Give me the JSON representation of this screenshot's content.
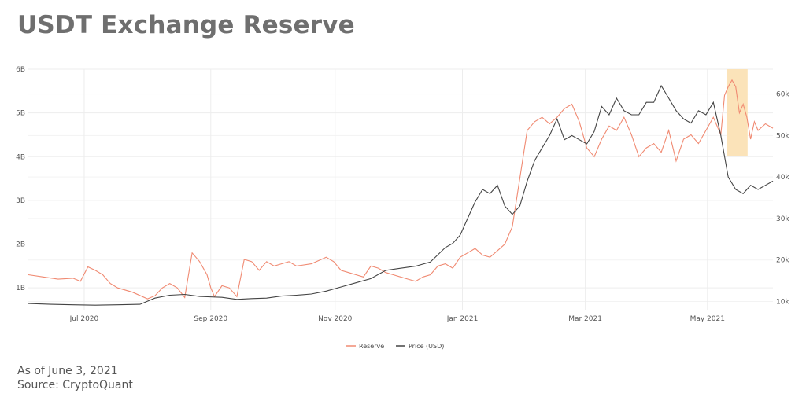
{
  "title": "USDT Exchange Reserve",
  "footer": {
    "line1": "As of June 3, 2021",
    "line2": "Source: CryptoQuant"
  },
  "chart_data": {
    "type": "line",
    "x_tick_labels": [
      "Jul 2020",
      "Sep 2020",
      "Nov 2020",
      "Jan 2021",
      "Mar 2021",
      "May 2021"
    ],
    "y_left_ticks": [
      "6B",
      "5B",
      "4B",
      "3B",
      "2B",
      "1B"
    ],
    "y_right_ticks": [
      "60k",
      "50k",
      "40k",
      "30k",
      "20k",
      "10k"
    ],
    "ylim_left": [
      0.5,
      6
    ],
    "ylim_right": [
      8000,
      66000
    ],
    "grid": true,
    "legend_position": "bottom-center",
    "highlight": {
      "from": 0.938,
      "to": 0.966,
      "color": "#fbe3b9",
      "note": "highlighted recent drop in reserve"
    },
    "series": [
      {
        "name": "Reserve",
        "axis": "left",
        "color": "#f08a72",
        "x": [
          0.0,
          0.02,
          0.04,
          0.06,
          0.07,
          0.08,
          0.09,
          0.1,
          0.11,
          0.12,
          0.14,
          0.16,
          0.17,
          0.18,
          0.19,
          0.2,
          0.21,
          0.22,
          0.23,
          0.24,
          0.245,
          0.25,
          0.26,
          0.27,
          0.28,
          0.29,
          0.3,
          0.31,
          0.32,
          0.33,
          0.34,
          0.35,
          0.36,
          0.38,
          0.4,
          0.41,
          0.42,
          0.43,
          0.44,
          0.45,
          0.46,
          0.47,
          0.48,
          0.49,
          0.5,
          0.51,
          0.52,
          0.53,
          0.54,
          0.55,
          0.56,
          0.57,
          0.58,
          0.59,
          0.6,
          0.61,
          0.62,
          0.63,
          0.64,
          0.65,
          0.66,
          0.67,
          0.675,
          0.68,
          0.69,
          0.7,
          0.71,
          0.72,
          0.73,
          0.74,
          0.75,
          0.76,
          0.77,
          0.78,
          0.79,
          0.8,
          0.81,
          0.82,
          0.83,
          0.84,
          0.85,
          0.86,
          0.87,
          0.88,
          0.89,
          0.9,
          0.91,
          0.92,
          0.93,
          0.935,
          0.94,
          0.945,
          0.95,
          0.955,
          0.96,
          0.965,
          0.97,
          0.975,
          0.98,
          0.99,
          1.0
        ],
        "values": [
          1.3,
          1.25,
          1.2,
          1.22,
          1.15,
          1.48,
          1.4,
          1.3,
          1.1,
          1.0,
          0.9,
          0.75,
          0.82,
          1.0,
          1.1,
          1.0,
          0.78,
          1.8,
          1.6,
          1.3,
          1.0,
          0.8,
          1.05,
          1.0,
          0.8,
          1.65,
          1.6,
          1.4,
          1.6,
          1.5,
          1.55,
          1.6,
          1.5,
          1.55,
          1.7,
          1.6,
          1.4,
          1.35,
          1.3,
          1.25,
          1.5,
          1.45,
          1.35,
          1.3,
          1.25,
          1.2,
          1.15,
          1.25,
          1.3,
          1.5,
          1.55,
          1.45,
          1.7,
          1.8,
          1.9,
          1.75,
          1.7,
          1.85,
          2.0,
          2.4,
          3.5,
          4.6,
          4.7,
          4.8,
          4.9,
          4.75,
          4.9,
          5.1,
          5.2,
          4.8,
          4.2,
          4.0,
          4.4,
          4.7,
          4.6,
          4.9,
          4.5,
          4.0,
          4.2,
          4.3,
          4.1,
          4.6,
          3.9,
          4.4,
          4.5,
          4.3,
          4.6,
          4.9,
          4.5,
          5.4,
          5.6,
          5.75,
          5.6,
          5.0,
          5.2,
          4.9,
          4.4,
          4.8,
          4.6,
          4.75,
          4.65
        ]
      },
      {
        "name": "Price (USD)",
        "axis": "right",
        "color": "#444444",
        "x": [
          0.0,
          0.03,
          0.06,
          0.09,
          0.12,
          0.15,
          0.17,
          0.19,
          0.21,
          0.23,
          0.26,
          0.28,
          0.3,
          0.32,
          0.34,
          0.36,
          0.38,
          0.4,
          0.42,
          0.44,
          0.46,
          0.48,
          0.5,
          0.52,
          0.54,
          0.56,
          0.57,
          0.58,
          0.59,
          0.6,
          0.61,
          0.62,
          0.63,
          0.64,
          0.65,
          0.66,
          0.67,
          0.68,
          0.69,
          0.7,
          0.71,
          0.72,
          0.73,
          0.74,
          0.75,
          0.76,
          0.77,
          0.78,
          0.79,
          0.8,
          0.81,
          0.82,
          0.83,
          0.84,
          0.85,
          0.86,
          0.87,
          0.88,
          0.89,
          0.9,
          0.91,
          0.92,
          0.93,
          0.94,
          0.95,
          0.96,
          0.97,
          0.98,
          0.99,
          1.0
        ],
        "values": [
          9500,
          9300,
          9200,
          9100,
          9200,
          9300,
          10800,
          11500,
          11700,
          11200,
          11000,
          10500,
          10700,
          10800,
          11300,
          11500,
          11800,
          12500,
          13500,
          14500,
          15500,
          17500,
          18000,
          18500,
          19500,
          23000,
          24000,
          26000,
          30000,
          34000,
          37000,
          36000,
          38000,
          33000,
          31000,
          33000,
          39000,
          44000,
          47000,
          50000,
          54000,
          49000,
          50000,
          49000,
          48000,
          51000,
          57000,
          55000,
          59000,
          56000,
          55000,
          55000,
          58000,
          58000,
          62000,
          59000,
          56000,
          54000,
          53000,
          56000,
          55000,
          58000,
          50000,
          40000,
          37000,
          36000,
          38000,
          37000,
          38000,
          39000
        ]
      }
    ]
  }
}
